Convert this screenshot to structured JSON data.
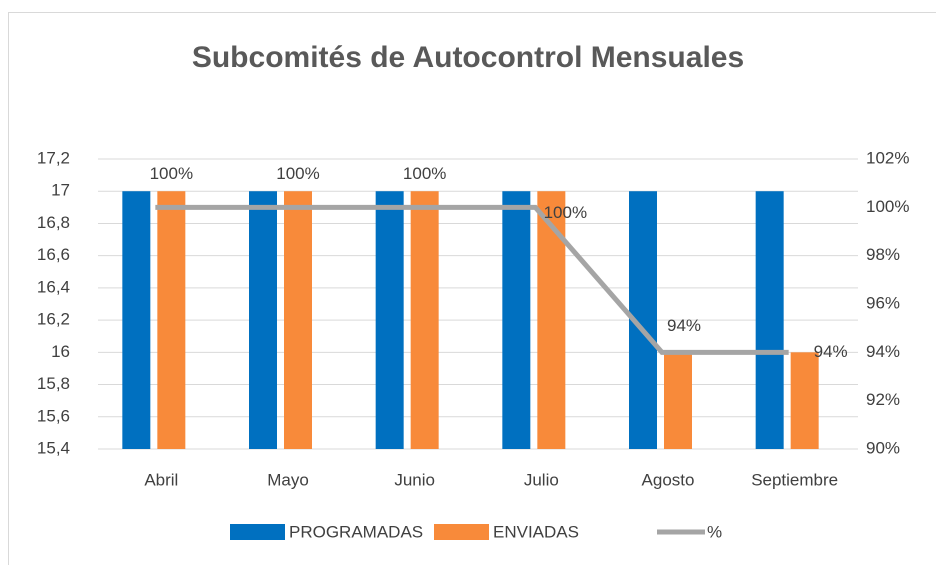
{
  "chart_data": {
    "type": "bar-line",
    "title": "Subcomités de Autocontrol Mensuales",
    "categories": [
      "Abril",
      "Mayo",
      "Junio",
      "Julio",
      "Agosto",
      "Septiembre"
    ],
    "series": [
      {
        "name": "PROGRAMADAS",
        "color": "#0070c0",
        "type": "bar",
        "values": [
          17,
          17,
          17,
          17,
          17,
          17
        ]
      },
      {
        "name": "ENVIADAS",
        "color": "#f88a3a",
        "type": "bar",
        "values": [
          17,
          17,
          17,
          17,
          16,
          16
        ]
      },
      {
        "name": "%",
        "color": "#a5a5a5",
        "type": "line",
        "axis": "y2",
        "values": [
          100,
          100,
          100,
          100,
          94,
          94
        ],
        "value_labels": [
          "100%",
          "100%",
          "100%",
          "100%",
          "94%",
          "94%"
        ]
      }
    ],
    "ylim": [
      15.4,
      17.2
    ],
    "yticks": [
      {
        "value": 15.4,
        "label": "15,4"
      },
      {
        "value": 15.6,
        "label": "15,6"
      },
      {
        "value": 15.8,
        "label": "15,8"
      },
      16,
      {
        "value": 16.2,
        "label": "16,2"
      },
      {
        "value": 16.4,
        "label": "16,4"
      },
      {
        "value": 16.6,
        "label": "16,6"
      },
      {
        "value": 16.8,
        "label": "16,8"
      },
      17,
      {
        "value": 17.2,
        "label": "17,2"
      }
    ],
    "y2lim": [
      90,
      102
    ],
    "y2ticks": [
      {
        "value": 90,
        "label": "90%"
      },
      {
        "value": 92,
        "label": "92%"
      },
      {
        "value": 94,
        "label": "94%"
      },
      {
        "value": 96,
        "label": "96%"
      },
      {
        "value": 98,
        "label": "98%"
      },
      {
        "value": 100,
        "label": "100%"
      },
      {
        "value": 102,
        "label": "102%"
      }
    ],
    "grid": true,
    "legend": "bottom"
  }
}
